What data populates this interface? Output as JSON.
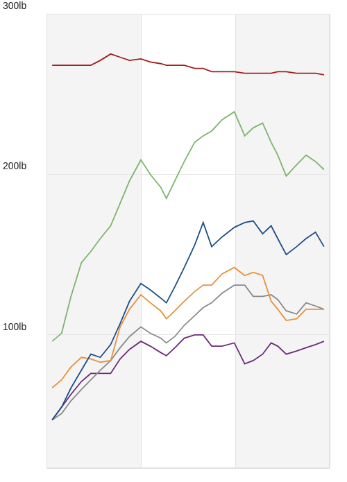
{
  "chart_data": {
    "type": "line",
    "x": [
      0.06,
      0.16,
      0.26,
      0.37,
      0.47,
      0.57,
      0.68,
      0.78,
      0.88,
      1.0,
      1.1,
      1.21,
      1.27,
      1.36,
      1.46,
      1.57,
      1.66,
      1.75,
      1.86,
      1.99,
      2.1,
      2.19,
      2.29,
      2.38,
      2.45,
      2.54,
      2.65,
      2.75,
      2.85,
      2.94
    ],
    "series": [
      {
        "color": "#a61c1c",
        "values": [
          268,
          268,
          268,
          268,
          268,
          271,
          275,
          273,
          271,
          272,
          270,
          269,
          268,
          268,
          268,
          266,
          266,
          264,
          264,
          264,
          263,
          263,
          263,
          263,
          264,
          264,
          263,
          263,
          263,
          262
        ]
      },
      {
        "color": "#7db46c",
        "values": [
          96,
          101,
          124,
          145,
          152,
          160,
          168,
          182,
          196,
          209,
          200,
          192,
          185,
          196,
          208,
          220,
          224,
          227,
          234,
          239,
          224,
          229,
          232,
          220,
          212,
          199,
          206,
          212,
          208,
          203
        ]
      },
      {
        "color": "#1f4e86",
        "values": [
          47,
          55,
          67,
          78,
          88,
          86,
          94,
          107,
          121,
          132,
          128,
          123,
          120,
          130,
          142,
          156,
          170,
          155,
          161,
          167,
          170,
          171,
          163,
          168,
          160,
          150,
          155,
          160,
          164,
          155
        ]
      },
      {
        "color": "#e8913a",
        "values": [
          67,
          72,
          80,
          86,
          85,
          83,
          84,
          105,
          116,
          125,
          120,
          115,
          110,
          115,
          121,
          127,
          131,
          131,
          138,
          142,
          137,
          139,
          137,
          121,
          116,
          109,
          110,
          116,
          116,
          116
        ]
      },
      {
        "color": "#8a8a8a",
        "values": [
          47,
          51,
          59,
          66,
          72,
          78,
          84,
          92,
          99,
          105,
          101,
          98,
          95,
          99,
          106,
          112,
          117,
          120,
          126,
          131,
          131,
          124,
          124,
          125,
          122,
          115,
          113,
          120,
          118,
          116
        ]
      },
      {
        "color": "#6b2a78",
        "values": [
          47,
          55,
          63,
          71,
          76,
          76,
          76,
          85,
          91,
          96,
          93,
          89,
          87,
          92,
          98,
          100,
          100,
          93,
          93,
          95,
          82,
          84,
          88,
          95,
          93,
          88,
          90,
          92,
          94,
          96
        ]
      }
    ],
    "xlim": [
      0,
      3
    ],
    "xticks": [
      0,
      1,
      2,
      3
    ],
    "ylim": [
      17,
      300
    ],
    "yticks": [
      {
        "value": 100,
        "label": "100lb"
      },
      {
        "value": 200,
        "label": "200lb"
      },
      {
        "value": 300,
        "label": "300lb"
      }
    ],
    "grid": true,
    "tick_labels": "y"
  }
}
